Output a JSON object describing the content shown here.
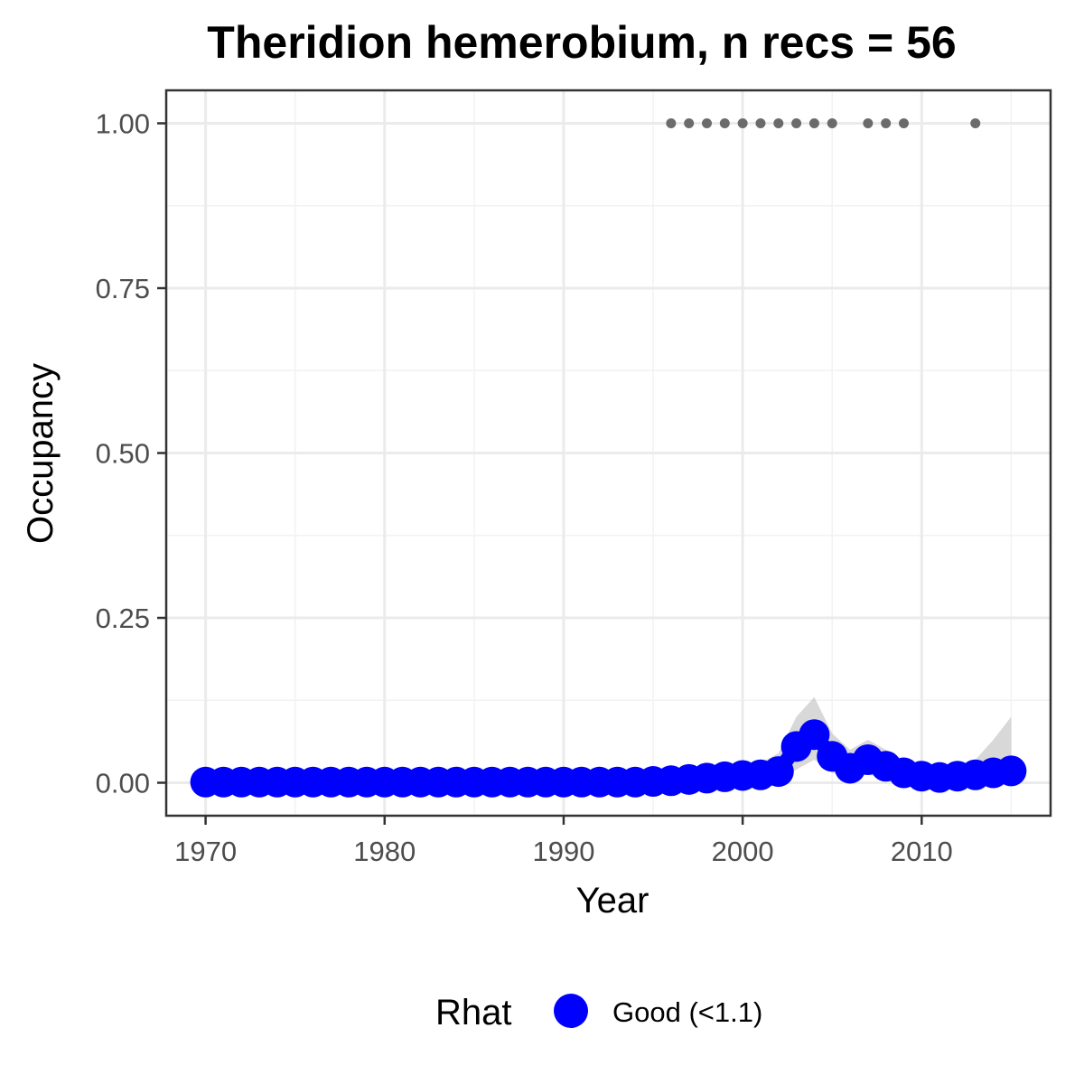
{
  "chart_data": {
    "type": "line",
    "title": "Theridion hemerobium, n recs = 56",
    "xlabel": "Year",
    "ylabel": "Occupancy",
    "xlim": [
      1967.8,
      2017.2
    ],
    "ylim": [
      -0.05,
      1.05
    ],
    "x_ticks": [
      1970,
      1980,
      1990,
      2000,
      2010
    ],
    "x_tick_labels": [
      "1970",
      "1980",
      "1990",
      "2000",
      "2010"
    ],
    "y_ticks": [
      0,
      0.25,
      0.5,
      0.75,
      1
    ],
    "y_tick_labels": [
      "0.00",
      "0.25",
      "0.50",
      "0.75",
      "1.00"
    ],
    "grid": true,
    "series": [
      {
        "x": [
          1970,
          1971,
          1972,
          1973,
          1974,
          1975,
          1976,
          1977,
          1978,
          1979,
          1980,
          1981,
          1982,
          1983,
          1984,
          1985,
          1986,
          1987,
          1988,
          1989,
          1990,
          1991,
          1992,
          1993,
          1994,
          1995,
          1996,
          1997,
          1998,
          1999,
          2000,
          2001,
          2002,
          2003,
          2004,
          2005,
          2006,
          2007,
          2008,
          2009,
          2010,
          2011,
          2012,
          2013,
          2014,
          2015
        ],
        "mean": [
          0.001,
          0.001,
          0.001,
          0.001,
          0.001,
          0.001,
          0.001,
          0.001,
          0.001,
          0.001,
          0.001,
          0.001,
          0.001,
          0.001,
          0.001,
          0.001,
          0.001,
          0.001,
          0.001,
          0.001,
          0.001,
          0.001,
          0.001,
          0.001,
          0.001,
          0.002,
          0.003,
          0.005,
          0.007,
          0.009,
          0.011,
          0.012,
          0.017,
          0.055,
          0.073,
          0.04,
          0.022,
          0.035,
          0.025,
          0.015,
          0.01,
          0.008,
          0.01,
          0.012,
          0.015,
          0.018
        ],
        "lower": [
          0,
          0,
          0,
          0,
          0,
          0,
          0,
          0,
          0,
          0,
          0,
          0,
          0,
          0,
          0,
          0,
          0,
          0,
          0,
          0,
          0,
          0,
          0,
          0,
          0,
          0,
          0,
          0,
          0,
          0,
          0,
          0,
          0.002,
          0.02,
          0.035,
          0.015,
          0.008,
          0.012,
          0.008,
          0.004,
          0.002,
          0.001,
          0.002,
          0.002,
          0.002,
          0.002
        ],
        "upper": [
          0.003,
          0.003,
          0.003,
          0.003,
          0.003,
          0.003,
          0.003,
          0.003,
          0.003,
          0.003,
          0.003,
          0.003,
          0.003,
          0.003,
          0.003,
          0.003,
          0.003,
          0.003,
          0.003,
          0.003,
          0.003,
          0.003,
          0.003,
          0.003,
          0.003,
          0.006,
          0.009,
          0.013,
          0.018,
          0.022,
          0.026,
          0.03,
          0.045,
          0.1,
          0.13,
          0.075,
          0.05,
          0.065,
          0.05,
          0.035,
          0.025,
          0.022,
          0.025,
          0.035,
          0.065,
          0.1
        ],
        "color": "#0000ff",
        "ribbon_color": "#bebebe"
      }
    ],
    "records": {
      "x": [
        1996,
        1997,
        1998,
        1999,
        2000,
        2001,
        2002,
        2003,
        2004,
        2005,
        2007,
        2008,
        2009,
        2013
      ],
      "y": [
        1,
        1,
        1,
        1,
        1,
        1,
        1,
        1,
        1,
        1,
        1,
        1,
        1,
        1
      ],
      "color": "#6b6b6b"
    },
    "legend": {
      "title": "Rhat",
      "entries": [
        {
          "label": "Good (<1.1)",
          "color": "#0000ff"
        }
      ],
      "position": "bottom"
    }
  }
}
